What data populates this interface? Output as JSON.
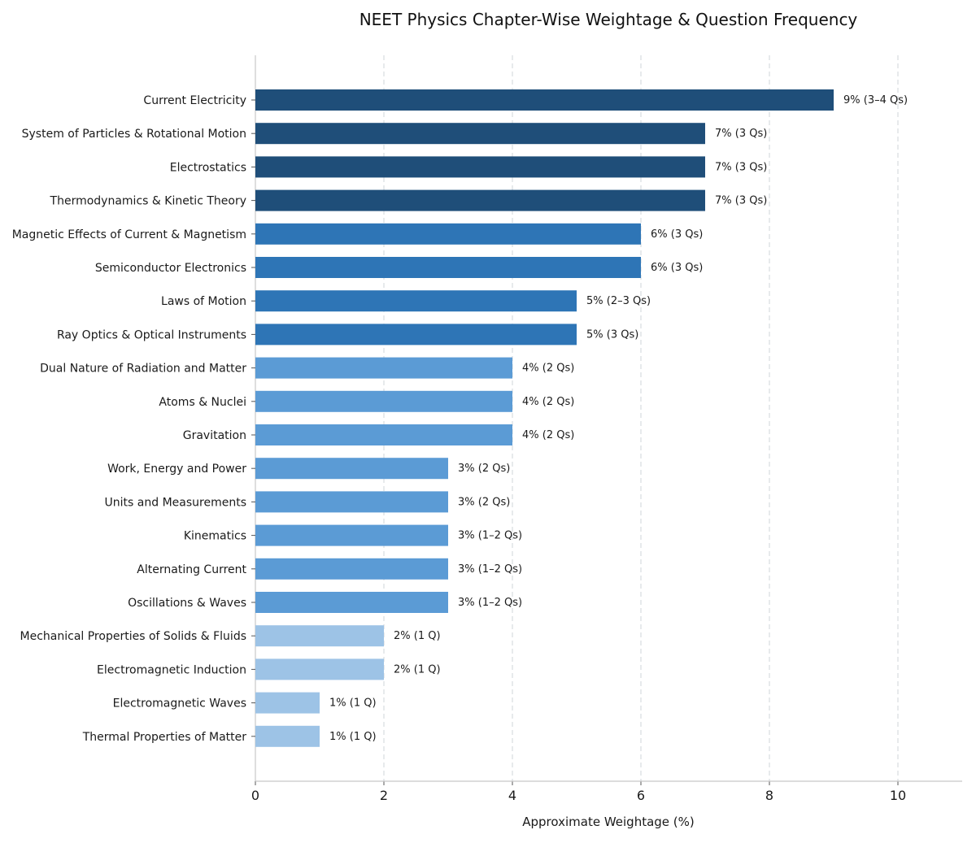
{
  "chart_data": {
    "type": "bar",
    "orientation": "horizontal",
    "title": "NEET Physics Chapter-Wise Weightage & Question Frequency",
    "xlabel": "Approximate Weightage (%)",
    "ylabel": "",
    "xlim": [
      0,
      11
    ],
    "xticks": [
      0,
      2,
      4,
      6,
      8,
      10
    ],
    "grid": "vertical dashed",
    "categories": [
      "Current Electricity",
      "System of Particles & Rotational Motion",
      "Electrostatics",
      "Thermodynamics & Kinetic Theory",
      "Magnetic Effects of Current & Magnetism",
      "Semiconductor Electronics",
      "Laws of Motion",
      "Ray Optics & Optical Instruments",
      "Dual Nature of Radiation and Matter",
      "Atoms & Nuclei",
      "Gravitation",
      "Work, Energy and Power",
      "Units and Measurements",
      "Kinematics",
      "Alternating Current",
      "Oscillations & Waves",
      "Mechanical Properties of Solids & Fluids",
      "Electromagnetic Induction",
      "Electromagnetic Waves",
      "Thermal Properties of Matter"
    ],
    "values": [
      9,
      7,
      7,
      7,
      6,
      6,
      5,
      5,
      4,
      4,
      4,
      3,
      3,
      3,
      3,
      3,
      2,
      2,
      1,
      1
    ],
    "value_labels": [
      "9% (3–4 Qs)",
      "7% (3 Qs)",
      "7% (3 Qs)",
      "7% (3 Qs)",
      "6% (3 Qs)",
      "6% (3 Qs)",
      "5% (2–3 Qs)",
      "5% (3 Qs)",
      "4% (2 Qs)",
      "4% (2 Qs)",
      "4% (2 Qs)",
      "3% (2 Qs)",
      "3% (2 Qs)",
      "3% (1–2 Qs)",
      "3% (1–2 Qs)",
      "3% (1–2 Qs)",
      "2% (1 Q)",
      "2% (1 Q)",
      "1% (1 Q)",
      "1% (1 Q)"
    ],
    "colors": {
      "7_and_above": "#1f4e79",
      "5_to_6": "#2e75b6",
      "3_to_4": "#5b9bd5",
      "1_to_2": "#9dc3e6"
    }
  }
}
